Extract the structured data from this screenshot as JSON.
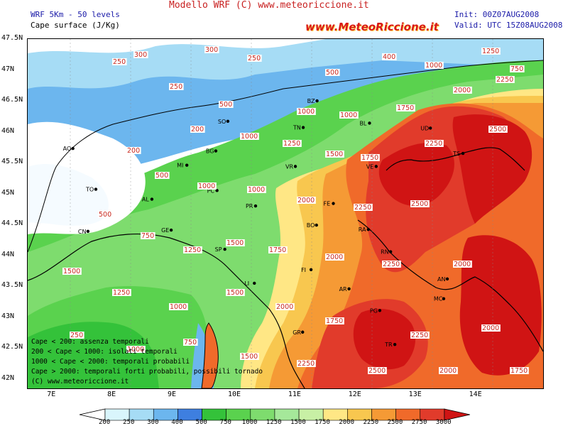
{
  "header": {
    "title": "Modello WRF (C) www.meteoriccione.it",
    "model": "WRF 5Km - 50 levels",
    "field": "Cape surface (J/Kg)",
    "init": "Init: 00Z07AUG2008",
    "valid": "Valid: UTC 15Z08AUG2008",
    "logo": "www.MeteoRiccione.it"
  },
  "axes": {
    "lat_labels": [
      "47.5N",
      "47N",
      "46.5N",
      "46N",
      "45.5N",
      "45N",
      "44.5N",
      "44N",
      "43.5N",
      "43N",
      "42.5N",
      "42N"
    ],
    "lon_labels": [
      "7E",
      "8E",
      "9E",
      "10E",
      "11E",
      "12E",
      "13E",
      "14E"
    ]
  },
  "cities": [
    {
      "code": "AO",
      "lon": 7.3,
      "lat": 45.73
    },
    {
      "code": "TO",
      "lon": 7.68,
      "lat": 45.07
    },
    {
      "code": "CN",
      "lon": 7.55,
      "lat": 44.39
    },
    {
      "code": "AL",
      "lon": 8.61,
      "lat": 44.91
    },
    {
      "code": "GE",
      "lon": 8.93,
      "lat": 44.41
    },
    {
      "code": "MI",
      "lon": 9.19,
      "lat": 45.46
    },
    {
      "code": "BG",
      "lon": 9.67,
      "lat": 45.69
    },
    {
      "code": "PC",
      "lon": 9.69,
      "lat": 45.05
    },
    {
      "code": "SO",
      "lon": 9.87,
      "lat": 46.17
    },
    {
      "code": "BZ",
      "lon": 11.35,
      "lat": 46.5
    },
    {
      "code": "TN",
      "lon": 11.12,
      "lat": 46.07
    },
    {
      "code": "VR",
      "lon": 10.99,
      "lat": 45.44
    },
    {
      "code": "VE",
      "lon": 12.33,
      "lat": 45.44
    },
    {
      "code": "BL",
      "lon": 12.22,
      "lat": 46.14
    },
    {
      "code": "UD",
      "lon": 13.23,
      "lat": 46.06
    },
    {
      "code": "TS",
      "lon": 13.77,
      "lat": 45.65
    },
    {
      "code": "FE",
      "lon": 11.62,
      "lat": 44.84
    },
    {
      "code": "BO",
      "lon": 11.34,
      "lat": 44.49
    },
    {
      "code": "RA",
      "lon": 12.2,
      "lat": 44.42
    },
    {
      "code": "RN",
      "lon": 12.57,
      "lat": 44.06
    },
    {
      "code": "PR",
      "lon": 10.33,
      "lat": 44.8
    },
    {
      "code": "SP",
      "lon": 9.82,
      "lat": 44.1
    },
    {
      "code": "LI",
      "lon": 10.31,
      "lat": 43.55
    },
    {
      "code": "FI",
      "lon": 11.25,
      "lat": 43.77
    },
    {
      "code": "AR",
      "lon": 11.88,
      "lat": 43.46
    },
    {
      "code": "PG",
      "lon": 12.39,
      "lat": 43.11
    },
    {
      "code": "AN",
      "lon": 13.51,
      "lat": 43.62
    },
    {
      "code": "MC",
      "lon": 13.45,
      "lat": 43.3
    },
    {
      "code": "TR",
      "lon": 12.64,
      "lat": 42.56
    },
    {
      "code": "GR",
      "lon": 11.11,
      "lat": 42.76
    }
  ],
  "contour_labels": [
    "200",
    "250",
    "300",
    "400",
    "500",
    "750",
    "1000",
    "1250",
    "1500",
    "1750",
    "2000",
    "2250",
    "2500"
  ],
  "legend_lines": [
    "Cape < 200: assenza temporali",
    "200 < Cape < 1000: isolati temporali",
    "1000 < Cape < 2000: temporali probabili",
    "Cape > 2000: temporali forti probabili, possibili tornado",
    "(C) www.meteoriccione.it"
  ],
  "colorbar": {
    "ticks": [
      "200",
      "250",
      "300",
      "400",
      "500",
      "750",
      "1000",
      "1250",
      "1500",
      "1750",
      "2000",
      "2250",
      "2500",
      "2750",
      "3000"
    ],
    "colors": [
      "#ffffff",
      "#d9f5fc",
      "#a6dcf5",
      "#6cb6ee",
      "#3e7fe0",
      "#34c23a",
      "#5ad24e",
      "#7edc6e",
      "#a5e89a",
      "#c8f0a5",
      "#ffe785",
      "#f8c74f",
      "#f59a35",
      "#f06a2a",
      "#e13b2b",
      "#d01414"
    ]
  }
}
